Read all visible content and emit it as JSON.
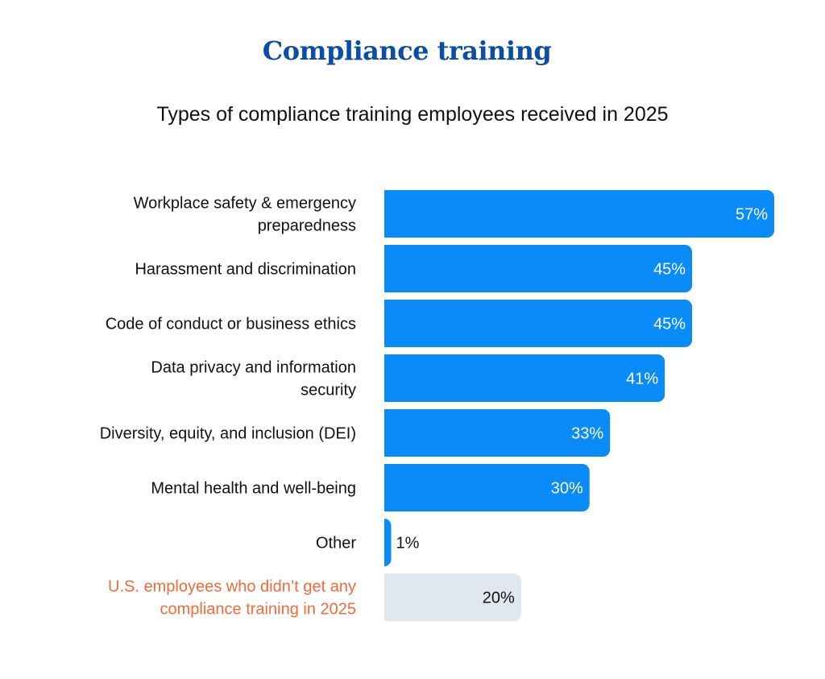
{
  "chart_title": "Compliance training",
  "chart_subtitle": "Types of compliance training employees received in 2025",
  "colors": {
    "title": "#0B4EA2",
    "bar": "#0A8CF8",
    "no_training_bar": "#E1E7EF",
    "no_training_label": "#F26B3A",
    "value_on_bar": "#FFFFFF",
    "value_outside": "#111111"
  },
  "chart_data": {
    "type": "bar",
    "orientation": "horizontal",
    "title": "Compliance training",
    "subtitle": "Types of compliance training employees received in 2025",
    "categories": [
      [
        "Workplace safety & emergency",
        "preparedness"
      ],
      [
        "Harassment and discrimination"
      ],
      [
        "Code of conduct or business ethics"
      ],
      [
        "Data privacy and information",
        "security"
      ],
      [
        "Diversity, equity, and inclusion (DEI)"
      ],
      [
        "Mental health and well-being"
      ],
      [
        "Other"
      ],
      [
        "U.S. employees who didn’t get any",
        "compliance training in 2025"
      ]
    ],
    "values": [
      57,
      45,
      45,
      41,
      33,
      30,
      1,
      20
    ],
    "value_labels": [
      "57%",
      "45%",
      "45%",
      "41%",
      "33%",
      "30%",
      "1%",
      "20%"
    ],
    "highlight_index": 7,
    "xlim": [
      0,
      57
    ],
    "grid": false,
    "legend": "none"
  }
}
